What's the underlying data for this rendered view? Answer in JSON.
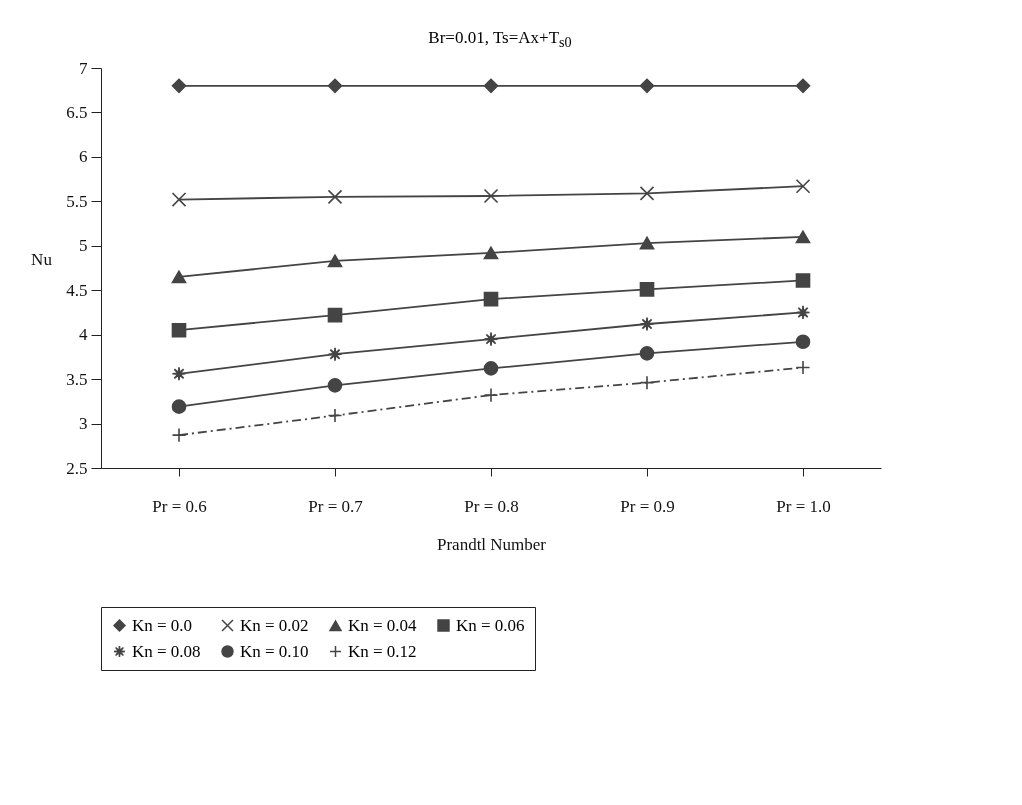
{
  "chart_data": {
    "type": "line",
    "title": "Br=0.01, Ts=Ax+T$_{s0}$",
    "xlabel": "Prandtl Number",
    "ylabel": "Nu",
    "categories": [
      "Pr = 0.6",
      "Pr = 0.7",
      "Pr = 0.8",
      "Pr = 0.9",
      "Pr = 1.0"
    ],
    "series": [
      {
        "name": "Kn = 0.0",
        "color": "#444444",
        "marker": "diamond",
        "line_style": "solid",
        "values": [
          6.8,
          6.8,
          6.8,
          6.8,
          6.8
        ]
      },
      {
        "name": "Kn = 0.02",
        "color": "#444444",
        "marker": "x",
        "line_style": "solid",
        "values": [
          5.52,
          5.55,
          5.56,
          5.59,
          5.67
        ]
      },
      {
        "name": "Kn = 0.04",
        "color": "#444444",
        "marker": "triangle",
        "line_style": "solid",
        "values": [
          4.65,
          4.83,
          4.92,
          5.03,
          5.1
        ]
      },
      {
        "name": "Kn = 0.06",
        "color": "#444444",
        "marker": "square",
        "line_style": "solid",
        "values": [
          4.05,
          4.22,
          4.4,
          4.51,
          4.61
        ]
      },
      {
        "name": "Kn = 0.08",
        "color": "#444444",
        "marker": "star",
        "line_style": "solid",
        "values": [
          3.56,
          3.78,
          3.95,
          4.12,
          4.25
        ]
      },
      {
        "name": "Kn = 0.10",
        "color": "#444444",
        "marker": "circle",
        "line_style": "solid",
        "values": [
          3.19,
          3.43,
          3.62,
          3.79,
          3.92
        ]
      },
      {
        "name": "Kn = 0.12",
        "color": "#444444",
        "marker": "cross",
        "line_style": "dashed",
        "values": [
          2.87,
          3.09,
          3.32,
          3.46,
          3.63
        ]
      }
    ],
    "ylim": [
      2.5,
      7
    ],
    "yticks": [
      2.5,
      3,
      3.5,
      4,
      4.5,
      5,
      5.5,
      6,
      6.5,
      7
    ],
    "grid": false,
    "legend": "bottom"
  }
}
